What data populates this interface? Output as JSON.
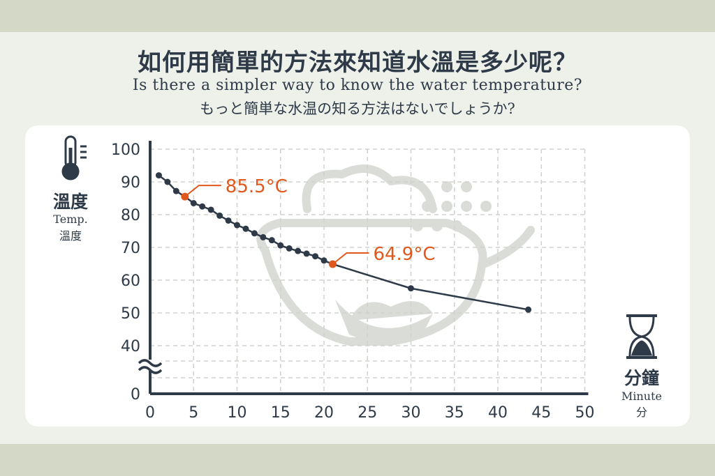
{
  "header": {
    "title": "如何用簡單的方法來知道水溫是多少呢？",
    "subtitle_en": "Is there a simpler way to know the water temperature?",
    "subtitle_jp": "もっと簡単な水温の知る方法はないでしょうか?"
  },
  "colors": {
    "line": "#2e3a48",
    "highlight": "#e0581c",
    "grid": "#cfd2cc",
    "watermark": "#dadcd8"
  },
  "icons": [
    "thermometer-icon",
    "hourglass-icon",
    "teapot-watermark"
  ],
  "chart_data": {
    "type": "line",
    "title": "",
    "ylabel": "溫度",
    "ylabel_en": "Temp.",
    "ylabel_sub": "溫度",
    "xlabel": "分鐘",
    "xlabel_en": "Minute",
    "xlabel_sub": "分",
    "xlim": [
      0,
      50
    ],
    "ylim": [
      0,
      100
    ],
    "y_axis_break": true,
    "grid": true,
    "x_ticks": [
      "0",
      "5",
      "10",
      "15",
      "20",
      "25",
      "30",
      "35",
      "40",
      "45",
      "50"
    ],
    "y_ticks": [
      {
        "value": 100,
        "label": "100"
      },
      {
        "value": 90,
        "label": "90"
      },
      {
        "value": 80,
        "label": "80"
      },
      {
        "value": 70,
        "label": "70"
      },
      {
        "value": 60,
        "label": "60"
      },
      {
        "value": 50,
        "label": "50"
      },
      {
        "value": 40,
        "label": "40"
      },
      {
        "value": 0,
        "label": "0"
      }
    ],
    "series": [
      {
        "x": [
          1,
          2,
          3,
          4,
          5,
          6,
          7,
          8,
          9,
          10,
          11,
          12,
          13,
          14,
          15,
          16,
          17,
          18,
          19,
          20,
          21,
          30,
          43.5
        ],
        "y": [
          92,
          90,
          87.2,
          85.5,
          83.5,
          82.5,
          81.5,
          79.7,
          78.2,
          76.8,
          75.7,
          74.3,
          73.1,
          72.2,
          70.6,
          69.7,
          68.9,
          68.1,
          67.3,
          66.0,
          64.9,
          57.5,
          51.0
        ]
      }
    ],
    "annotations": [
      {
        "x": 4,
        "y": 85.5,
        "label": "85.5°C"
      },
      {
        "x": 21,
        "y": 64.9,
        "label": "64.9°C"
      }
    ]
  }
}
